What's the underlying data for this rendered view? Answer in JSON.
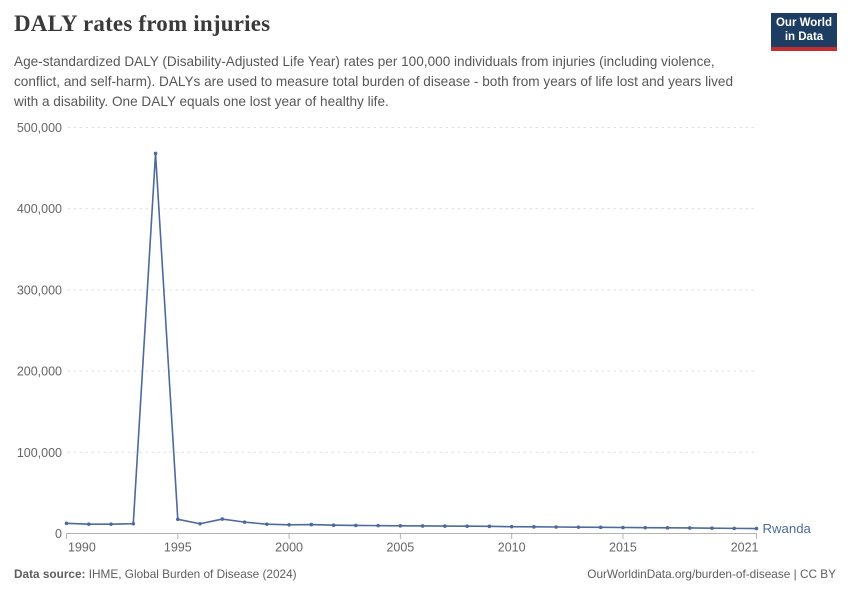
{
  "header": {
    "title": "DALY rates from injuries",
    "subtitle": "Age-standardized DALY (Disability-Adjusted Life Year) rates per 100,000 individuals from injuries (including violence, conflict, and self-harm). DALYs are used to measure total burden of disease - both from years of life lost and years lived with a disability. One DALY equals one lost year of healthy life.",
    "logo": {
      "line1": "Our World",
      "line2": "in Data",
      "bg_color": "#1d3d63",
      "accent_color": "#c52e2e"
    }
  },
  "chart_data": {
    "type": "line",
    "title": "DALY rates from injuries",
    "xlabel": "",
    "ylabel": "",
    "xlim": [
      1990,
      2021
    ],
    "ylim": [
      0,
      500000
    ],
    "grid": "horizontal-dashed",
    "legend_position": "end-of-line-label",
    "x": [
      1990,
      1991,
      1992,
      1993,
      1994,
      1995,
      1996,
      1997,
      1998,
      1999,
      2000,
      2001,
      2002,
      2003,
      2004,
      2005,
      2006,
      2007,
      2008,
      2009,
      2010,
      2011,
      2012,
      2013,
      2014,
      2015,
      2016,
      2017,
      2018,
      2019,
      2020,
      2021
    ],
    "series": [
      {
        "name": "Rwanda",
        "color": "#4c6a9c",
        "values": [
          12500,
          11500,
          11500,
          12000,
          468000,
          17500,
          12000,
          17800,
          14000,
          11500,
          10700,
          11000,
          10200,
          9900,
          9700,
          9500,
          9300,
          9100,
          9000,
          8800,
          8400,
          8200,
          8000,
          7800,
          7600,
          7400,
          7200,
          7000,
          6800,
          6600,
          6300,
          6100
        ]
      }
    ],
    "y_ticks": [
      {
        "value": 0,
        "label": "0"
      },
      {
        "value": 100000,
        "label": "100,000"
      },
      {
        "value": 200000,
        "label": "200,000"
      },
      {
        "value": 300000,
        "label": "300,000"
      },
      {
        "value": 400000,
        "label": "400,000"
      },
      {
        "value": 500000,
        "label": "500,000"
      }
    ],
    "x_ticks": [
      {
        "value": 1990,
        "label": "1990",
        "align": "start"
      },
      {
        "value": 1995,
        "label": "1995",
        "align": "middle"
      },
      {
        "value": 2000,
        "label": "2000",
        "align": "middle"
      },
      {
        "value": 2005,
        "label": "2005",
        "align": "middle"
      },
      {
        "value": 2010,
        "label": "2010",
        "align": "middle"
      },
      {
        "value": 2015,
        "label": "2015",
        "align": "middle"
      },
      {
        "value": 2021,
        "label": "2021",
        "align": "end"
      }
    ]
  },
  "colors": {
    "line": "#4c6a9c",
    "grid": "#e0e0e0",
    "axis": "#b3b3b3",
    "tick_label": "#666666",
    "title": "#3a3a3a",
    "subtitle": "#575757",
    "footer": "#5e5e5e"
  },
  "footer": {
    "source_label": "Data source:",
    "source_value": " IHME, Global Burden of Disease (2024)",
    "credit": "OurWorldinData.org/burden-of-disease | CC BY"
  }
}
